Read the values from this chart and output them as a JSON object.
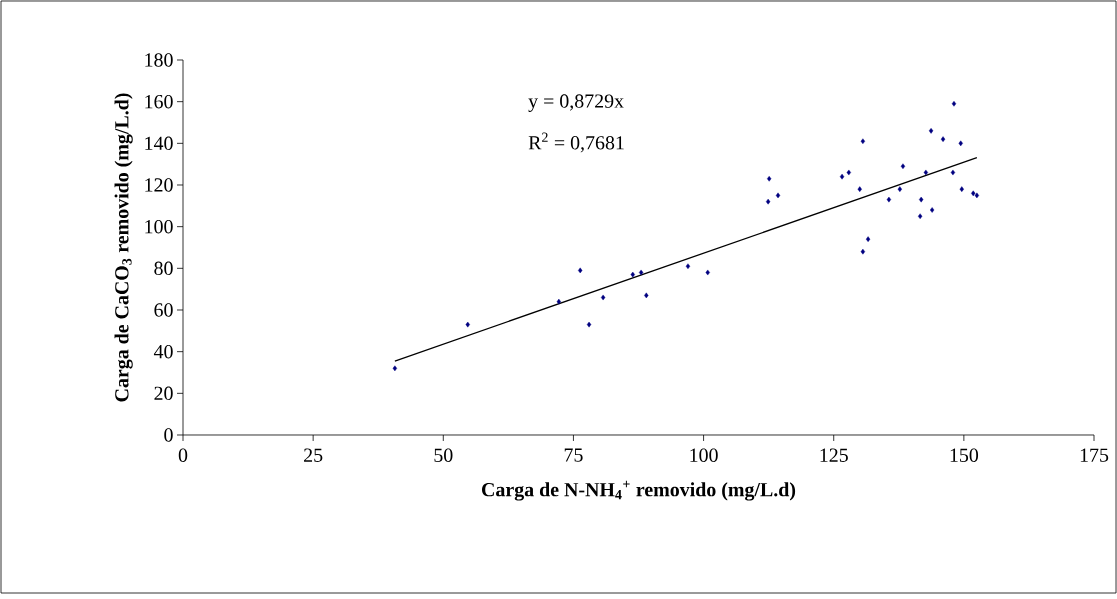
{
  "chart_data": {
    "type": "scatter",
    "xlabel": "Carga de N-NH$_{4}$$^{+}$ removido (mg/L.d)",
    "ylabel": "Carga de CaCO$_{3}$ removido (mg/L.d)",
    "annotations": [
      "y = 0,8729x",
      "R$^{2}$ = 0,7681"
    ],
    "xlim": [
      0,
      175
    ],
    "ylim": [
      0,
      180
    ],
    "xticks": [
      0,
      25,
      50,
      75,
      100,
      125,
      150,
      175
    ],
    "yticks": [
      0,
      20,
      40,
      60,
      80,
      100,
      120,
      140,
      160,
      180
    ],
    "grid": false,
    "marker": "diamond",
    "series": [
      {
        "color": "#000080",
        "x": [
          40.7,
          54.7,
          72.2,
          76.3,
          78.0,
          80.7,
          86.4,
          88.0,
          89.0,
          97.0,
          100.8,
          112.6,
          112.4,
          114.3,
          130.6,
          126.6,
          127.9,
          130.0,
          131.6,
          130.6,
          135.6,
          138.3,
          137.7,
          141.8,
          141.6,
          143.9,
          142.7,
          143.7,
          146.0,
          149.4,
          147.9,
          149.6,
          151.8,
          152.5,
          148.1
        ],
        "values": [
          32,
          53,
          64,
          79,
          53,
          66,
          77,
          78,
          67,
          81,
          78,
          123,
          112,
          115,
          141,
          124,
          126,
          118,
          94,
          88,
          113,
          129,
          118,
          113,
          105,
          108,
          126,
          146,
          142,
          140,
          126,
          118,
          116,
          115,
          159
        ]
      },
      {
        "type": "line",
        "color": "#000000",
        "line_style": "solid",
        "marker": "none",
        "x": [
          40.7,
          152.5
        ],
        "values": [
          35.5,
          133.1
        ]
      }
    ]
  }
}
